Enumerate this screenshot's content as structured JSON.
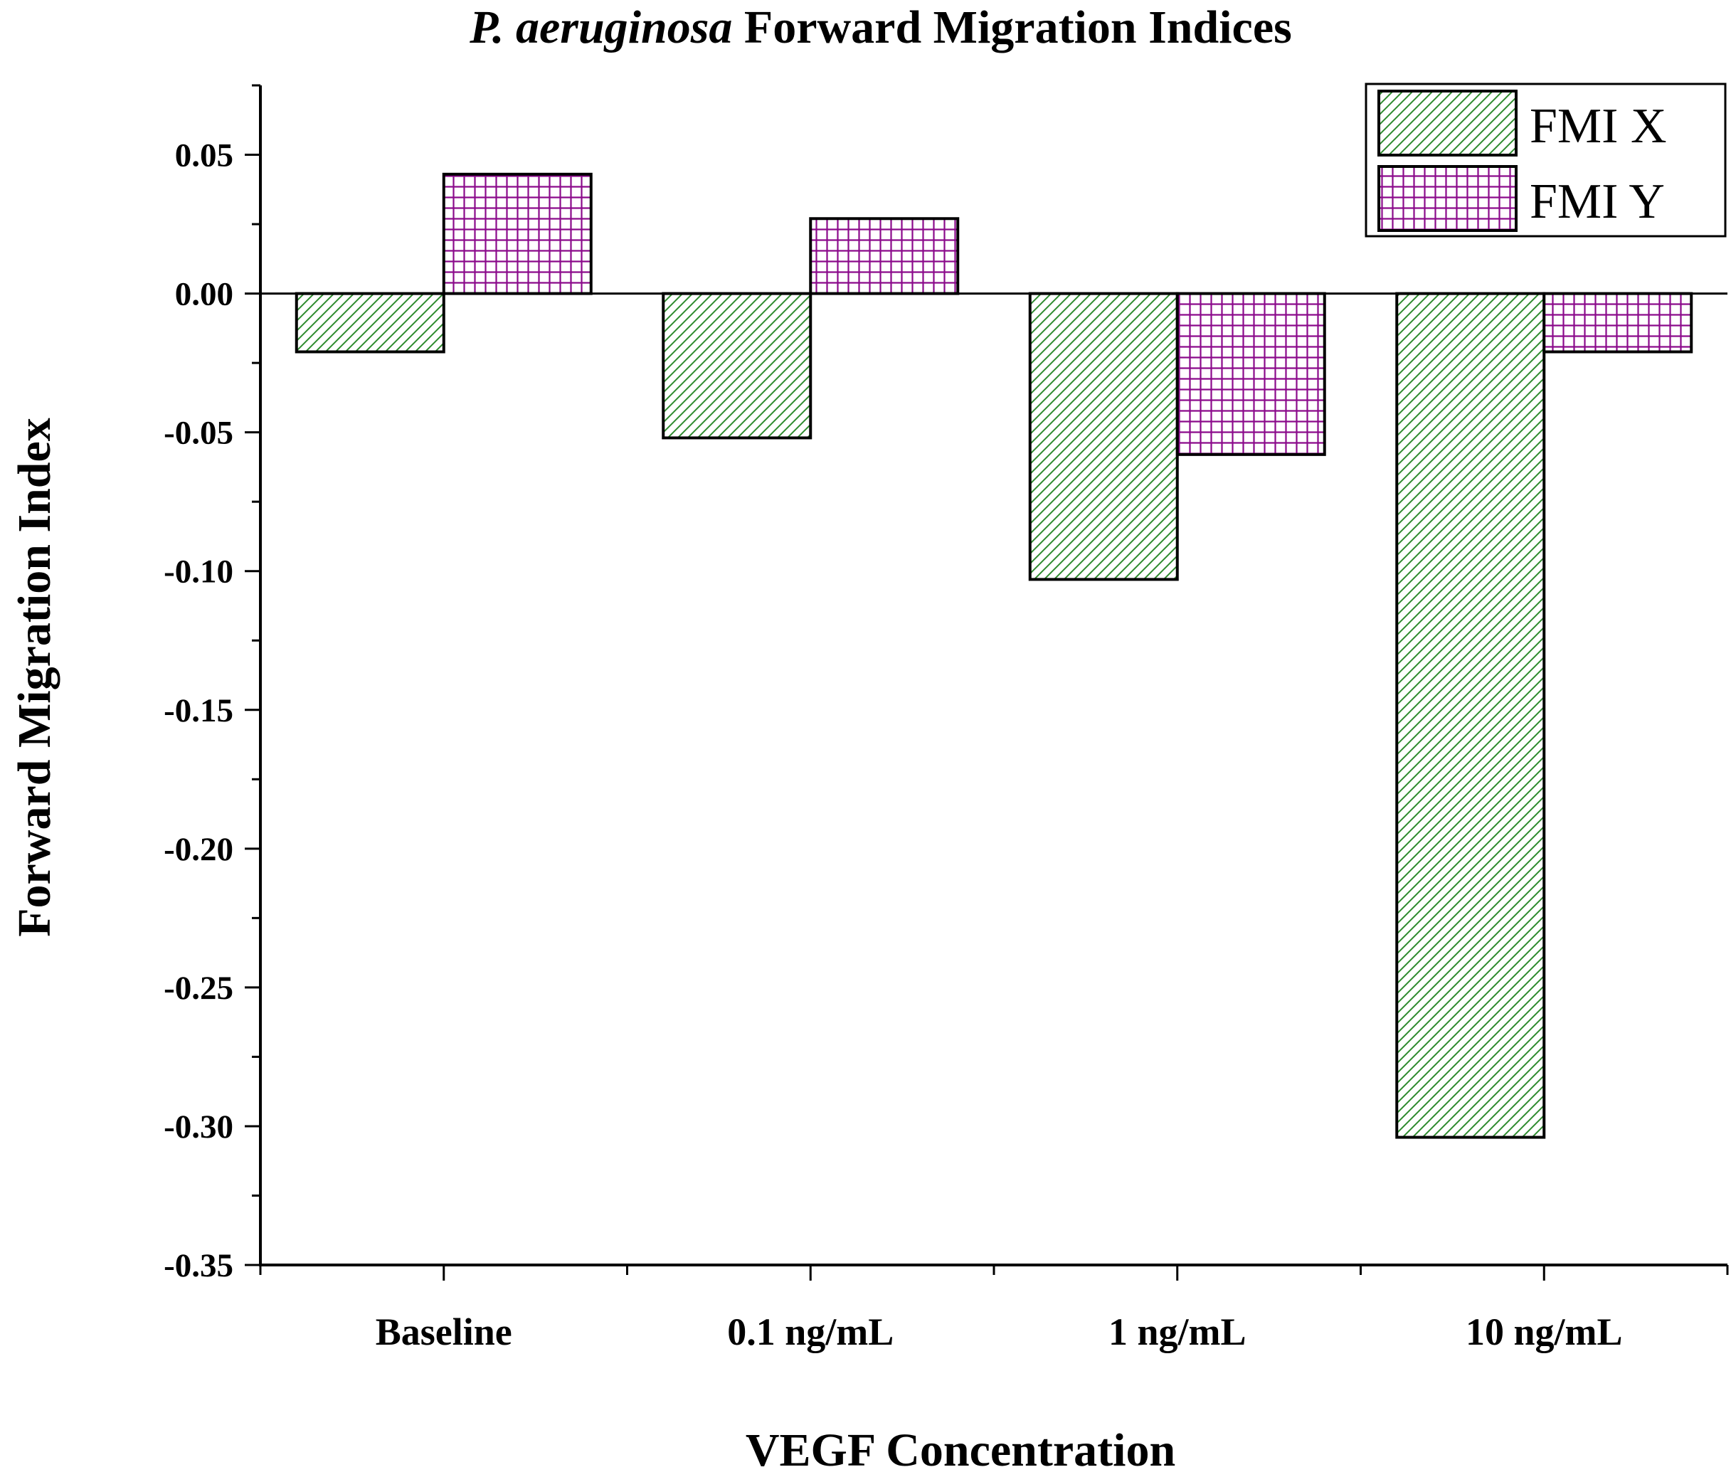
{
  "chart_data": {
    "type": "bar",
    "title_italic": "P. aeruginosa",
    "title_rest": " Forward Migration Indices",
    "xlabel": "VEGF Concentration",
    "ylabel": "Forward Migration Index",
    "categories": [
      "Baseline",
      "0.1 ng/mL",
      "1 ng/mL",
      "10 ng/mL"
    ],
    "series": [
      {
        "name": "FMI X",
        "values": [
          -0.021,
          -0.052,
          -0.103,
          -0.304
        ],
        "color": "#2e8b2e",
        "pattern": "diagonal-hatch"
      },
      {
        "name": "FMI Y",
        "values": [
          0.043,
          0.027,
          -0.058,
          -0.021
        ],
        "color": "#8b0a8b",
        "pattern": "grid-hatch"
      }
    ],
    "ylim": [
      -0.35,
      0.075
    ],
    "yticks": [
      0.05,
      0.0,
      -0.05,
      -0.1,
      -0.15,
      -0.2,
      -0.25,
      -0.3,
      -0.35
    ],
    "ytick_labels": [
      "0.05",
      "0.00",
      "-0.05",
      "-0.10",
      "-0.15",
      "-0.20",
      "-0.25",
      "-0.30",
      "-0.35"
    ],
    "grid": false,
    "legend_position": "top-right"
  }
}
